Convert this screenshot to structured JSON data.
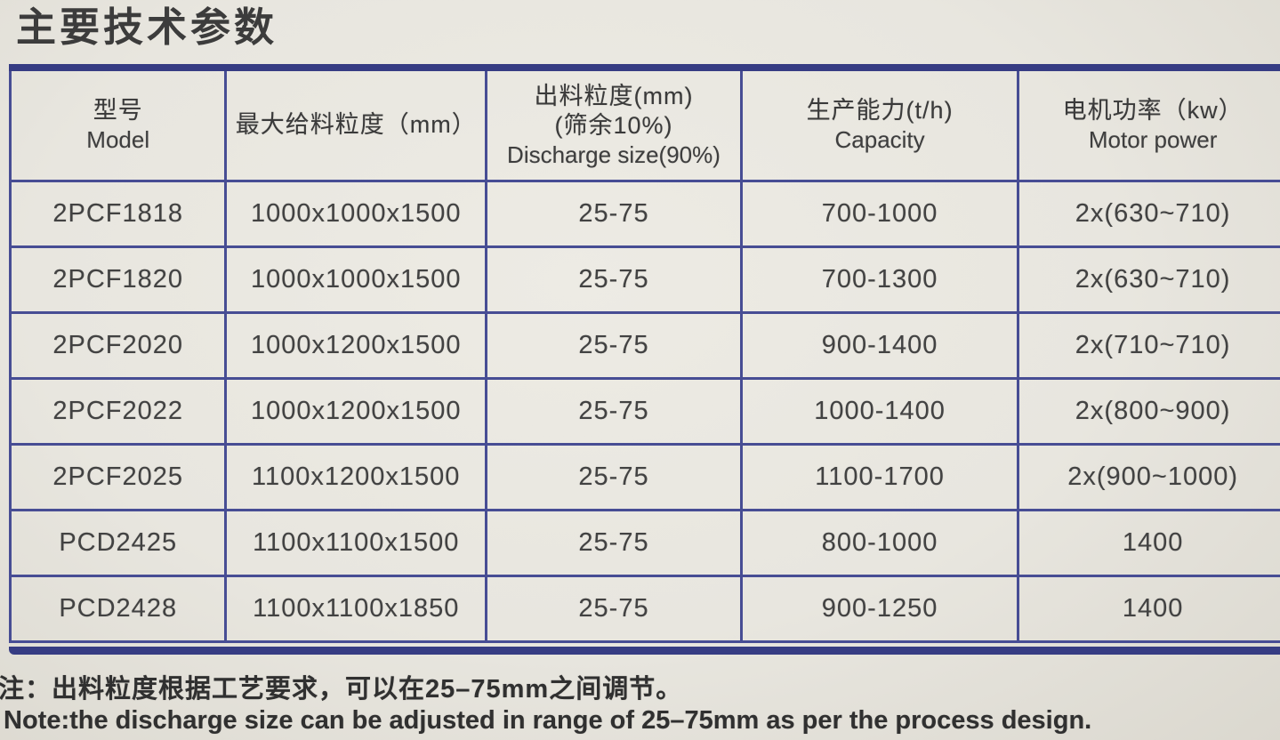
{
  "title": "主要技术参数",
  "table": {
    "columns": [
      {
        "zh": "型号",
        "en": "Model"
      },
      {
        "zh": "最大给料粒度（mm）",
        "en": ""
      },
      {
        "zh": "出料粒度(mm)",
        "zh2": "(筛余10%)",
        "en": "Discharge size(90%)"
      },
      {
        "zh": "生产能力(t/h)",
        "en": "Capacity"
      },
      {
        "zh": "电机功率（kw）",
        "en": "Motor power"
      }
    ],
    "rows": [
      [
        "2PCF1818",
        "1000x1000x1500",
        "25-75",
        "700-1000",
        "2x(630~710)"
      ],
      [
        "2PCF1820",
        "1000x1000x1500",
        "25-75",
        "700-1300",
        "2x(630~710)"
      ],
      [
        "2PCF2020",
        "1000x1200x1500",
        "25-75",
        "900-1400",
        "2x(710~710)"
      ],
      [
        "2PCF2022",
        "1000x1200x1500",
        "25-75",
        "1000-1400",
        "2x(800~900)"
      ],
      [
        "2PCF2025",
        "1100x1200x1500",
        "25-75",
        "1100-1700",
        "2x(900~1000)"
      ],
      [
        "PCD2425",
        "1100x1100x1500",
        "25-75",
        "800-1000",
        "1400"
      ],
      [
        "PCD2428",
        "1100x1100x1850",
        "25-75",
        "900-1250",
        "1400"
      ]
    ]
  },
  "note_zh": "注：出料粒度根据工艺要求，可以在25–75mm之间调节。",
  "note_en": "Note:the discharge size can be adjusted in range of 25–75mm as per the process design.",
  "colors": {
    "border_navy": "#474d94",
    "thick_bar": "#363c83",
    "page_background": "#e8e6df",
    "text": "#3f3f3f"
  }
}
